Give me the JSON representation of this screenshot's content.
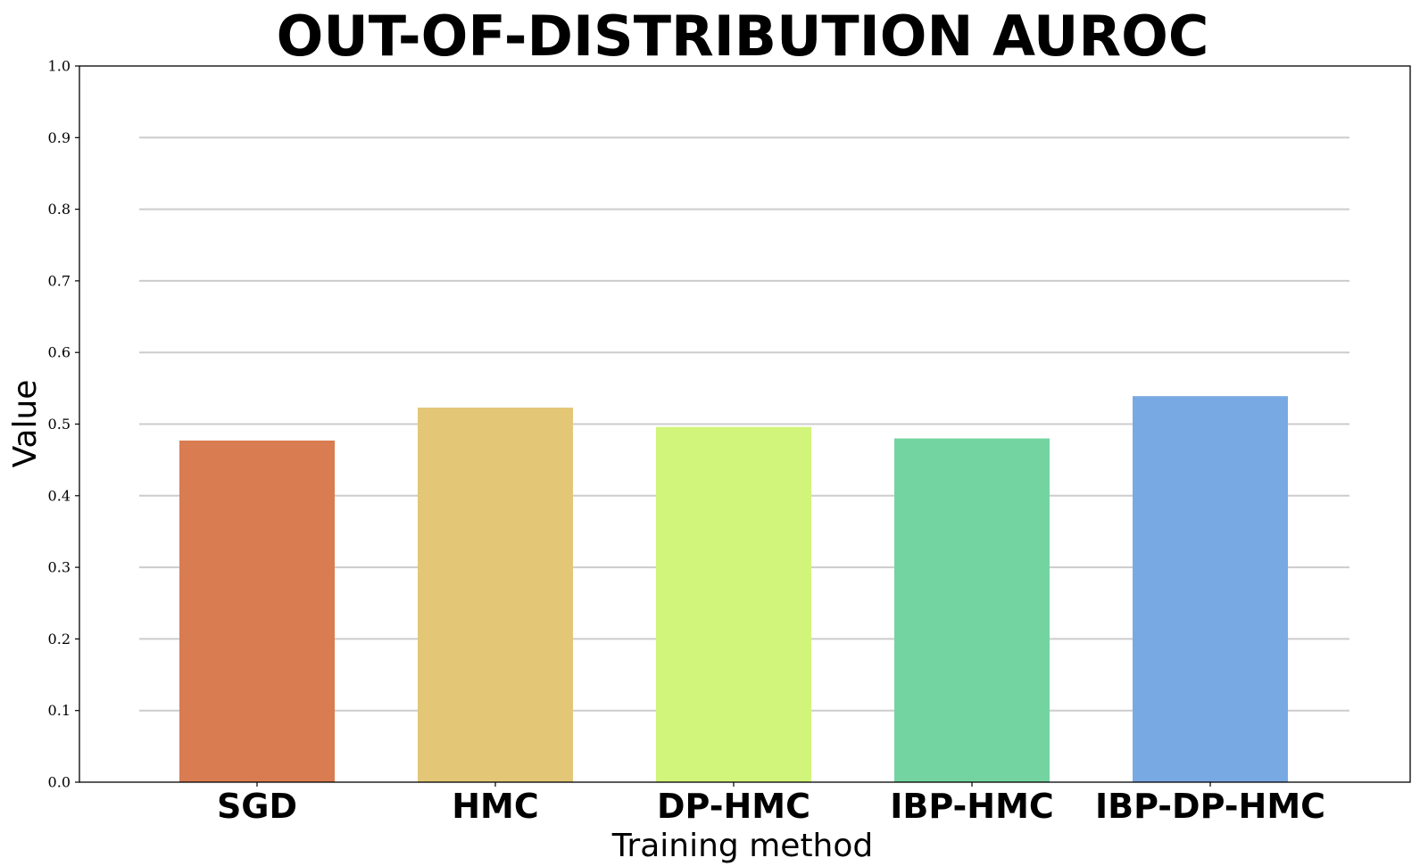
{
  "chart_data": {
    "type": "bar",
    "title": "OUT-OF-DISTRIBUTION AUROC",
    "xlabel": "Training method",
    "ylabel": "Value",
    "categories": [
      "SGD",
      "HMC",
      "DP-HMC",
      "IBP-HMC",
      "IBP-DP-HMC"
    ],
    "values": [
      0.477,
      0.523,
      0.496,
      0.48,
      0.539
    ],
    "colors": [
      "#d97c51",
      "#e3c777",
      "#d1f57a",
      "#74d4a1",
      "#78a9e3"
    ],
    "ylim": [
      0,
      1.0
    ],
    "yticks": [
      "0.0",
      "0.1",
      "0.2",
      "0.3",
      "0.4",
      "0.5",
      "0.6",
      "0.7",
      "0.8",
      "0.9",
      "1.0"
    ],
    "grid": true,
    "gridColor": "#cccccc"
  }
}
